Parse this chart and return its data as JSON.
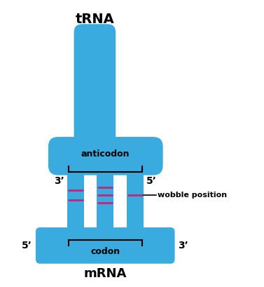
{
  "blue_color": "#3aabdf",
  "pink_color": "#cc2277",
  "bg_color": "#ffffff",
  "text_color": "#000000",
  "title_trna": "tRNA",
  "title_mrna": "mRNA",
  "label_anticodon": "anticodon",
  "label_codon": "codon",
  "label_wobble": "wobble position",
  "label_3prime_top": "3’",
  "label_5prime_top": "5’",
  "label_5prime_bot": "5’",
  "label_3prime_bot": "3’",
  "figsize": [
    3.77,
    4.09
  ],
  "dpi": 100
}
